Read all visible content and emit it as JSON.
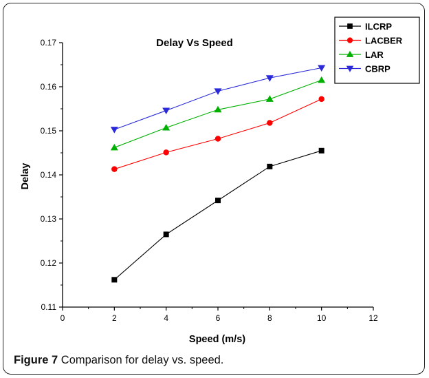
{
  "chart_data": {
    "type": "line",
    "title": "Delay Vs Speed",
    "xlabel": "Speed (m/s)",
    "ylabel": "Delay",
    "xlim": [
      0,
      12
    ],
    "ylim": [
      0.11,
      0.17
    ],
    "xticks": [
      0,
      2,
      4,
      6,
      8,
      10,
      12
    ],
    "yticks": [
      0.11,
      0.12,
      0.13,
      0.14,
      0.15,
      0.16,
      0.17
    ],
    "x": [
      2,
      4,
      6,
      8,
      10
    ],
    "legend_position": "top-right",
    "grid": false,
    "series": [
      {
        "name": "ILCRP",
        "color": "#000000",
        "marker": "square",
        "values": [
          0.1162,
          0.1265,
          0.1342,
          0.1419,
          0.1455
        ]
      },
      {
        "name": "LACBER",
        "color": "#ff0000",
        "marker": "circle",
        "values": [
          0.1413,
          0.1451,
          0.1482,
          0.1518,
          0.1572
        ]
      },
      {
        "name": "LAR",
        "color": "#00b000",
        "marker": "triangle-up",
        "values": [
          0.1462,
          0.1507,
          0.1548,
          0.1572,
          0.1615
        ]
      },
      {
        "name": "CBRP",
        "color": "#2a2ad8",
        "marker": "triangle-down",
        "values": [
          0.1503,
          0.1546,
          0.159,
          0.162,
          0.1643
        ]
      }
    ]
  },
  "caption": {
    "lead": "Figure 7",
    "text": " Comparison for delay vs. speed."
  }
}
